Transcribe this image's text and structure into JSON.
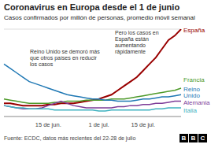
{
  "chart_data": {
    "type": "line",
    "title": "Coronavirus en Europa desde el 1 de junio",
    "subtitle": "Casos confirmados por millón de personas, promedio móvil semanal",
    "categories": [
      null,
      null,
      null,
      null,
      null,
      null,
      null,
      "15 de jun.",
      null,
      null,
      null,
      null,
      null,
      null,
      null,
      "1 de jul.",
      null,
      null,
      null,
      null,
      null,
      null,
      "15 de jul.",
      null,
      null,
      null,
      null,
      null,
      null
    ],
    "series": [
      {
        "name": "España",
        "color": "#990000",
        "values": [
          6,
          6,
          5.5,
          5,
          5,
          5,
          5,
          5.5,
          5.5,
          6,
          6,
          6,
          6.5,
          7,
          7.5,
          8,
          9,
          10,
          12,
          14,
          16,
          18,
          21,
          24,
          27,
          31,
          35,
          37,
          40
        ]
      },
      {
        "name": "Francia",
        "color": "#4e9a2a",
        "values": [
          8,
          7.5,
          7,
          6.5,
          6,
          6,
          6,
          6,
          6.5,
          6.5,
          7,
          7,
          7,
          7.5,
          7.5,
          7.5,
          7.5,
          8,
          8,
          8,
          8.5,
          9,
          9.5,
          10,
          10.5,
          11,
          11.5,
          12,
          13
        ]
      },
      {
        "name": "Reino Unido",
        "color": "#1f78b4",
        "values": [
          24,
          22,
          20,
          18,
          16,
          15,
          14,
          13,
          12,
          11,
          10,
          9.5,
          9,
          8.5,
          8,
          8,
          7.5,
          7.5,
          7,
          7,
          7,
          7.5,
          8,
          8,
          8.5,
          9,
          9,
          9.5,
          10
        ]
      },
      {
        "name": "Alemania",
        "color": "#7d3c98",
        "values": [
          5,
          4.5,
          4,
          3.5,
          3.5,
          3.5,
          4,
          5,
          6,
          7,
          6,
          5,
          4.5,
          4,
          4,
          4,
          4,
          4,
          4.5,
          4.5,
          5,
          5,
          5.5,
          5.5,
          6,
          6,
          6.5,
          7,
          7
        ]
      },
      {
        "name": "Italia",
        "color": "#3fb2c0",
        "values": [
          5,
          4.5,
          4,
          4,
          3.5,
          3.5,
          3.5,
          3.5,
          3,
          3,
          3,
          3,
          3,
          3,
          3,
          2.5,
          2.5,
          3,
          3,
          3,
          3,
          3,
          3,
          3,
          3.5,
          3.5,
          4,
          4,
          4
        ]
      }
    ],
    "ylim": [
      0,
      40
    ],
    "yticks": [
      0,
      10,
      20,
      30,
      40
    ],
    "grid": true,
    "tick_labels": "x",
    "annotations": [
      "Pero los casos en España están aumentando rápidamente",
      "Reino Unido se demoró más que otros países en reducir los casos"
    ],
    "source": "Fuente: ECDC, datos más recientes del 22-28 de julio",
    "logo": "BBC"
  }
}
